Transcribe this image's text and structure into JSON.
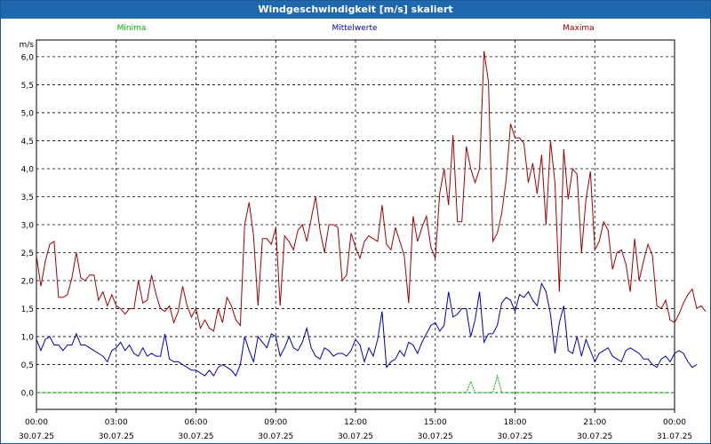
{
  "window": {
    "title": "Windgeschwindigkeit [m/s] skaliert"
  },
  "colors": {
    "titlebar": "#1f68ad",
    "min": "#00b000",
    "mean": "#0000b4",
    "max": "#a00000",
    "grid": "#000000"
  },
  "chart_data": {
    "type": "line",
    "title": "Windgeschwindigkeit [m/s] skaliert",
    "ylabel": "m/s",
    "ylim": [
      -0.3,
      6.3
    ],
    "yticks": [
      "0,0",
      "0,5",
      "1,0",
      "1,5",
      "2,0",
      "2,5",
      "3,0",
      "3,5",
      "4,0",
      "4,5",
      "5,0",
      "5,5",
      "6,0"
    ],
    "xticks": [
      {
        "time": "00:00",
        "date": "30.07.25"
      },
      {
        "time": "03:00",
        "date": "30.07.25"
      },
      {
        "time": "06:00",
        "date": "30.07.25"
      },
      {
        "time": "09:00",
        "date": "30.07.25"
      },
      {
        "time": "12:00",
        "date": "30.07.25"
      },
      {
        "time": "15:00",
        "date": "30.07.25"
      },
      {
        "time": "18:00",
        "date": "30.07.25"
      },
      {
        "time": "21:00",
        "date": "30.07.25"
      },
      {
        "time": "00:00",
        "date": "31.07.25"
      }
    ],
    "grid": true,
    "legend_position": "top",
    "sample_minutes": 10,
    "series": [
      {
        "name": "Minima",
        "color": "#00b000",
        "values": [
          0,
          0,
          0,
          0,
          0,
          0,
          0,
          0,
          0,
          0,
          0,
          0,
          0,
          0,
          0,
          0,
          0,
          0,
          0,
          0,
          0,
          0,
          0,
          0,
          0,
          0,
          0,
          0,
          0,
          0,
          0,
          0,
          0,
          0,
          0,
          0,
          0,
          0,
          0,
          0,
          0,
          0,
          0,
          0,
          0,
          0,
          0,
          0,
          0,
          0,
          0,
          0,
          0,
          0,
          0,
          0,
          0,
          0,
          0,
          0,
          0,
          0,
          0,
          0,
          0,
          0,
          0,
          0,
          0,
          0,
          0,
          0,
          0,
          0,
          0,
          0,
          0,
          0,
          0,
          0,
          0,
          0,
          0,
          0,
          0,
          0,
          0,
          0,
          0,
          0,
          0,
          0,
          0,
          0,
          0,
          0,
          0,
          0,
          0.2,
          0,
          0,
          0,
          0,
          0,
          0.3,
          0,
          0,
          0,
          0,
          0,
          0,
          0,
          0,
          0,
          0,
          0,
          0,
          0,
          0,
          0,
          0,
          0,
          0,
          0,
          0,
          0,
          0,
          0,
          0,
          0,
          0,
          0,
          0,
          0,
          0,
          0,
          0,
          0,
          0,
          0,
          0,
          0,
          0,
          0
        ]
      },
      {
        "name": "Mittelwerte",
        "color": "#0000b4",
        "values": [
          0.95,
          0.75,
          0.95,
          1.0,
          0.85,
          0.85,
          0.75,
          0.85,
          0.85,
          1.05,
          0.85,
          0.85,
          0.8,
          0.75,
          0.7,
          0.65,
          0.55,
          0.75,
          0.8,
          0.9,
          0.75,
          0.85,
          0.7,
          0.65,
          0.8,
          0.65,
          0.7,
          0.65,
          0.65,
          1.05,
          0.6,
          0.55,
          0.55,
          0.5,
          0.45,
          0.4,
          0.4,
          0.35,
          0.3,
          0.4,
          0.3,
          0.45,
          0.5,
          0.45,
          0.4,
          0.3,
          0.5,
          1.0,
          0.75,
          0.55,
          1.0,
          0.9,
          0.8,
          1.05,
          1.0,
          0.65,
          0.8,
          1.0,
          0.8,
          0.75,
          0.9,
          1.15,
          0.8,
          0.65,
          0.6,
          0.8,
          0.75,
          0.65,
          0.7,
          0.7,
          0.65,
          0.75,
          0.95,
          0.85,
          0.55,
          0.8,
          0.65,
          0.95,
          1.45,
          0.45,
          0.55,
          0.6,
          0.75,
          0.65,
          0.9,
          0.85,
          0.7,
          0.9,
          1.05,
          1.2,
          1.25,
          1.1,
          1.2,
          1.8,
          1.35,
          1.4,
          1.5,
          1.5,
          1.0,
          1.3,
          1.8,
          0.9,
          1.05,
          1.05,
          1.2,
          1.6,
          1.7,
          1.65,
          1.45,
          1.75,
          1.7,
          1.8,
          1.65,
          1.55,
          1.95,
          1.8,
          1.4,
          0.7,
          1.25,
          1.55,
          0.75,
          0.7,
          1.0,
          0.65,
          0.95,
          0.75,
          0.55,
          0.7,
          0.75,
          0.8,
          0.65,
          0.6,
          0.55,
          0.75,
          0.8,
          0.75,
          0.7,
          0.6,
          0.6,
          0.5,
          0.45,
          0.6,
          0.65,
          0.55,
          0.7,
          0.75,
          0.7,
          0.55,
          0.45,
          0.5
        ]
      },
      {
        "name": "Maxima",
        "color": "#a00000",
        "values": [
          2.45,
          1.9,
          2.35,
          2.65,
          2.7,
          1.7,
          1.7,
          1.75,
          2.05,
          2.5,
          2.05,
          2.0,
          2.1,
          2.1,
          1.65,
          1.8,
          1.55,
          1.75,
          1.55,
          1.5,
          1.4,
          1.5,
          1.5,
          2.0,
          1.6,
          1.65,
          2.1,
          1.75,
          1.5,
          1.45,
          1.55,
          1.25,
          1.45,
          1.9,
          1.55,
          1.35,
          1.5,
          1.15,
          1.3,
          1.15,
          1.1,
          1.5,
          1.25,
          1.7,
          1.55,
          1.3,
          1.2,
          3.0,
          3.4,
          2.8,
          1.55,
          2.75,
          2.75,
          2.65,
          2.95,
          1.55,
          2.8,
          2.7,
          2.55,
          2.9,
          3.0,
          2.7,
          3.1,
          3.5,
          2.9,
          2.5,
          3.0,
          3.0,
          2.95,
          2.0,
          2.1,
          2.85,
          2.6,
          2.4,
          2.7,
          2.8,
          2.75,
          2.7,
          3.35,
          2.65,
          2.55,
          2.95,
          2.7,
          2.45,
          1.6,
          3.15,
          2.7,
          2.95,
          3.15,
          2.6,
          2.4,
          3.55,
          4.0,
          3.35,
          4.6,
          3.05,
          3.05,
          4.4,
          4.0,
          3.75,
          4.0,
          6.1,
          5.55,
          2.7,
          2.85,
          3.2,
          3.8,
          4.8,
          4.55,
          4.55,
          4.45,
          3.75,
          4.1,
          3.55,
          4.25,
          3.0,
          4.5,
          3.75,
          1.8,
          4.35,
          3.45,
          4.0,
          3.9,
          2.5,
          3.45,
          3.95,
          2.55,
          2.7,
          3.05,
          2.9,
          2.2,
          2.5,
          2.55,
          2.3,
          1.8,
          2.75,
          2.0,
          2.35,
          2.65,
          2.45,
          1.55,
          1.5,
          1.65,
          1.3,
          1.25,
          1.4,
          1.6,
          1.75,
          1.85,
          1.5,
          1.55,
          1.45
        ]
      }
    ]
  }
}
